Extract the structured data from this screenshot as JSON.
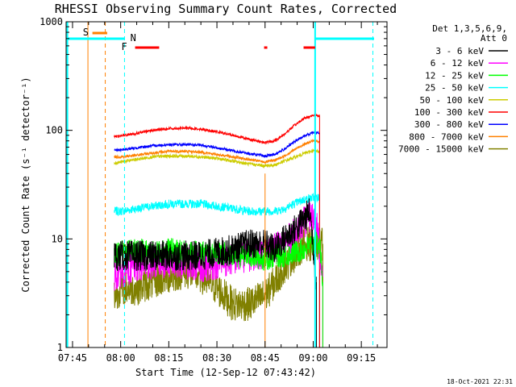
{
  "chart_data": {
    "type": "line",
    "title": "RHESSI Observing Summary Count Rates, Corrected",
    "xlabel": "Start Time (12-Sep-12 07:43:42)",
    "ylabel": "Corrected Count Rate (s⁻¹ detector⁻¹)",
    "y_scale": "log",
    "ylim": [
      1,
      1000
    ],
    "xlim_minutes": [
      -2,
      98
    ],
    "x_tick_labels": [
      "07:45",
      "08:00",
      "08:15",
      "08:30",
      "08:45",
      "09:00",
      "09:15"
    ],
    "x_tick_minutes": [
      0,
      15,
      30,
      45,
      60,
      75,
      90
    ],
    "y_tick_labels": [
      "1",
      "10",
      "100",
      "1000"
    ],
    "y_tick_values": [
      1,
      10,
      100,
      1000
    ],
    "legend": {
      "header_line1": "Det 1,3,5,6,9,",
      "header_line2": "Att 0",
      "placement": "right, outside plot"
    },
    "series": [
      {
        "name": "3 - 6 keV",
        "color": "#000000",
        "points": [
          [
            13,
            7
          ],
          [
            15,
            7
          ],
          [
            20,
            7
          ],
          [
            25,
            7
          ],
          [
            30,
            7
          ],
          [
            35,
            7
          ],
          [
            40,
            7
          ],
          [
            45,
            7.5
          ],
          [
            50,
            8
          ],
          [
            55,
            9
          ],
          [
            60,
            9
          ],
          [
            63,
            8
          ],
          [
            66,
            10
          ],
          [
            69,
            12
          ],
          [
            72,
            15
          ],
          [
            74,
            18
          ],
          [
            76,
            4
          ]
        ]
      },
      {
        "name": "6 - 12 keV",
        "color": "#ff00ff",
        "points": [
          [
            13,
            4.5
          ],
          [
            15,
            5
          ],
          [
            20,
            5.5
          ],
          [
            25,
            6
          ],
          [
            30,
            6
          ],
          [
            35,
            6
          ],
          [
            40,
            5.5
          ],
          [
            45,
            6
          ],
          [
            50,
            6.5
          ],
          [
            55,
            7
          ],
          [
            60,
            7.5
          ],
          [
            63,
            8
          ],
          [
            66,
            9
          ],
          [
            69,
            11
          ],
          [
            72,
            14
          ],
          [
            74,
            16
          ],
          [
            76,
            15
          ],
          [
            78,
            4
          ]
        ]
      },
      {
        "name": "12 - 25 keV",
        "color": "#00ff00",
        "points": [
          [
            13,
            7
          ],
          [
            15,
            7.5
          ],
          [
            20,
            8
          ],
          [
            25,
            7.5
          ],
          [
            30,
            8
          ],
          [
            35,
            7.5
          ],
          [
            40,
            7.5
          ],
          [
            45,
            7.5
          ],
          [
            50,
            7
          ],
          [
            55,
            7
          ],
          [
            60,
            6.5
          ],
          [
            63,
            7
          ],
          [
            66,
            7
          ],
          [
            69,
            7.5
          ],
          [
            72,
            8
          ],
          [
            75,
            9
          ],
          [
            77,
            9
          ],
          [
            78,
            4
          ]
        ]
      },
      {
        "name": "25 - 50 keV",
        "color": "#00ffff",
        "points": [
          [
            13,
            18
          ],
          [
            15,
            18
          ],
          [
            20,
            19
          ],
          [
            25,
            20
          ],
          [
            30,
            21
          ],
          [
            35,
            21
          ],
          [
            40,
            21
          ],
          [
            45,
            20
          ],
          [
            50,
            19
          ],
          [
            55,
            18
          ],
          [
            60,
            18
          ],
          [
            63,
            18
          ],
          [
            66,
            19
          ],
          [
            69,
            21
          ],
          [
            72,
            23
          ],
          [
            75,
            24
          ],
          [
            77,
            24
          ]
        ]
      },
      {
        "name": "50 - 100 keV",
        "color": "#cccc00",
        "points": [
          [
            13,
            50
          ],
          [
            15,
            51
          ],
          [
            20,
            54
          ],
          [
            25,
            57
          ],
          [
            30,
            58
          ],
          [
            35,
            58
          ],
          [
            40,
            57
          ],
          [
            45,
            55
          ],
          [
            50,
            52
          ],
          [
            55,
            49
          ],
          [
            60,
            47
          ],
          [
            63,
            48
          ],
          [
            66,
            52
          ],
          [
            69,
            56
          ],
          [
            72,
            61
          ],
          [
            75,
            65
          ],
          [
            77,
            64
          ]
        ]
      },
      {
        "name": "100 - 300 keV",
        "color": "#ff0000",
        "points": [
          [
            13,
            88
          ],
          [
            15,
            89
          ],
          [
            20,
            94
          ],
          [
            25,
            100
          ],
          [
            30,
            104
          ],
          [
            35,
            105
          ],
          [
            40,
            103
          ],
          [
            45,
            97
          ],
          [
            50,
            90
          ],
          [
            55,
            83
          ],
          [
            60,
            77
          ],
          [
            63,
            80
          ],
          [
            66,
            92
          ],
          [
            69,
            110
          ],
          [
            72,
            128
          ],
          [
            75,
            138
          ],
          [
            77,
            136
          ]
        ]
      },
      {
        "name": "300 - 800 keV",
        "color": "#0000ff",
        "points": [
          [
            13,
            66
          ],
          [
            15,
            66
          ],
          [
            20,
            69
          ],
          [
            25,
            72
          ],
          [
            30,
            74
          ],
          [
            35,
            74
          ],
          [
            40,
            73
          ],
          [
            45,
            69
          ],
          [
            50,
            65
          ],
          [
            55,
            61
          ],
          [
            60,
            58
          ],
          [
            63,
            60
          ],
          [
            66,
            67
          ],
          [
            69,
            78
          ],
          [
            72,
            88
          ],
          [
            75,
            96
          ],
          [
            77,
            95
          ]
        ]
      },
      {
        "name": "800 - 7000 keV",
        "color": "#ff8000",
        "points": [
          [
            13,
            57
          ],
          [
            15,
            57
          ],
          [
            20,
            59
          ],
          [
            25,
            62
          ],
          [
            30,
            64
          ],
          [
            35,
            64
          ],
          [
            40,
            63
          ],
          [
            45,
            60
          ],
          [
            50,
            57
          ],
          [
            55,
            54
          ],
          [
            60,
            51
          ],
          [
            63,
            53
          ],
          [
            66,
            58
          ],
          [
            69,
            66
          ],
          [
            72,
            74
          ],
          [
            75,
            80
          ],
          [
            77,
            79
          ]
        ]
      },
      {
        "name": "7000 - 15000 keV",
        "color": "#808000",
        "points": [
          [
            13,
            3
          ],
          [
            15,
            3.5
          ],
          [
            20,
            3.5
          ],
          [
            25,
            4
          ],
          [
            30,
            4.5
          ],
          [
            35,
            5
          ],
          [
            40,
            4.5
          ],
          [
            45,
            3.5
          ],
          [
            50,
            2.5
          ],
          [
            55,
            2.5
          ],
          [
            60,
            3
          ],
          [
            63,
            4
          ],
          [
            66,
            5.5
          ],
          [
            69,
            7
          ],
          [
            72,
            9
          ],
          [
            74,
            9
          ],
          [
            76,
            9
          ],
          [
            78,
            9
          ]
        ]
      }
    ],
    "flags": [
      {
        "label": "S",
        "color": "#ff8000"
      },
      {
        "label": "N",
        "color": "#00ffff"
      },
      {
        "label": "F",
        "color": "#ff0000"
      }
    ],
    "footer_date": "18-Oct-2021 22:31"
  }
}
